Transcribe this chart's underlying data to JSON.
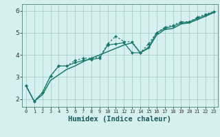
{
  "background_color": "#d6f0ef",
  "grid_color": "#a8cece",
  "line_color": "#1a7a6e",
  "xlabel": "Humidex (Indice chaleur)",
  "xlabel_fontsize": 7.5,
  "ylabel_ticks": [
    2,
    3,
    4,
    5,
    6
  ],
  "ytick_fontsize": 6.5,
  "xtick_fontsize": 5.0,
  "xlim": [
    -0.5,
    23.5
  ],
  "ylim": [
    1.65,
    6.3
  ],
  "xticks": [
    0,
    1,
    2,
    3,
    4,
    5,
    6,
    7,
    8,
    9,
    10,
    11,
    12,
    13,
    14,
    15,
    16,
    17,
    18,
    19,
    20,
    21,
    22,
    23
  ],
  "series": [
    {
      "x": [
        0,
        1,
        2,
        3,
        4,
        5,
        6,
        7,
        8,
        9,
        10,
        11,
        12,
        13,
        14,
        15,
        16,
        17,
        18,
        19,
        20,
        21,
        22,
        23
      ],
      "y": [
        2.6,
        1.9,
        2.3,
        3.05,
        3.5,
        3.5,
        3.75,
        3.85,
        3.85,
        3.9,
        4.5,
        4.85,
        4.6,
        4.6,
        4.1,
        4.5,
        5.0,
        5.25,
        5.35,
        5.5,
        5.5,
        5.7,
        5.85,
        5.95
      ],
      "style": "dotted",
      "marker": "D",
      "markersize": 2.0,
      "linewidth": 0.9
    },
    {
      "x": [
        0,
        1,
        2,
        3,
        4,
        5,
        6,
        7,
        8,
        9,
        10,
        11,
        12,
        13,
        14,
        15,
        16,
        17,
        18,
        19,
        20,
        21,
        22,
        23
      ],
      "y": [
        2.6,
        1.9,
        2.3,
        3.05,
        3.5,
        3.5,
        3.65,
        3.75,
        3.8,
        3.85,
        4.45,
        4.5,
        4.55,
        4.1,
        4.1,
        4.35,
        5.0,
        5.2,
        5.3,
        5.45,
        5.5,
        5.65,
        5.8,
        5.95
      ],
      "style": "solid",
      "marker": "D",
      "markersize": 2.0,
      "linewidth": 0.9
    },
    {
      "x": [
        0,
        1,
        2,
        3,
        4,
        5,
        6,
        7,
        8,
        9,
        10,
        11,
        12,
        13,
        14,
        15,
        16,
        17,
        18,
        19,
        20,
        21,
        22,
        23
      ],
      "y": [
        2.6,
        1.9,
        2.2,
        2.85,
        3.1,
        3.35,
        3.5,
        3.7,
        3.85,
        4.0,
        4.15,
        4.3,
        4.45,
        4.55,
        4.1,
        4.3,
        4.9,
        5.15,
        5.2,
        5.4,
        5.45,
        5.6,
        5.75,
        5.92
      ],
      "style": "solid",
      "marker": null,
      "markersize": 0,
      "linewidth": 1.1
    }
  ]
}
